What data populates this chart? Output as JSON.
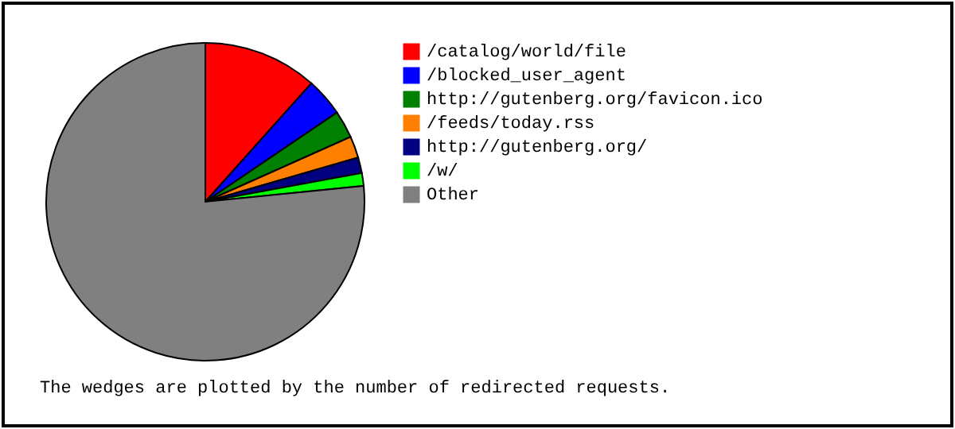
{
  "chart_data": {
    "type": "pie",
    "categories": [
      "/catalog/world/file",
      "/blocked_user_agent",
      "http://gutenberg.org/favicon.ico",
      "/feeds/today.rss",
      "http://gutenberg.org/",
      "/w/",
      "Other"
    ],
    "values": [
      11.6,
      3.9,
      2.8,
      2.2,
      1.6,
      1.3,
      76.6
    ],
    "colors": [
      "#ff0000",
      "#0000ff",
      "#008000",
      "#ff8000",
      "#000080",
      "#00ff00",
      "#808080"
    ],
    "legend": "right",
    "annotations": [
      "The wedges are plotted by the number of redirected requests."
    ]
  }
}
